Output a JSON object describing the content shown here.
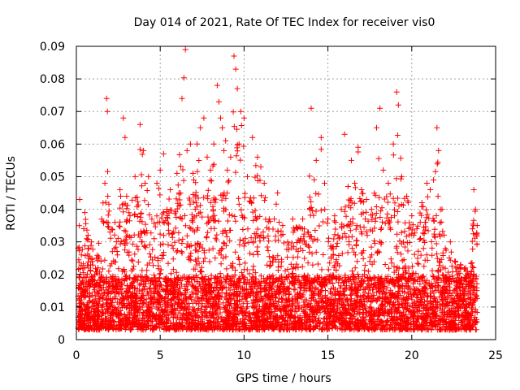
{
  "chart_data": {
    "type": "scatter",
    "title": "Day 014 of 2021, Rate Of TEC Index for receiver vis0",
    "xlabel": "GPS time / hours",
    "ylabel": "ROTI / TECUs",
    "xlim": [
      0,
      25
    ],
    "ylim": [
      0,
      0.09
    ],
    "x_ticks": [
      "0",
      "5",
      "10",
      "15",
      "20",
      "25"
    ],
    "y_ticks": [
      "0",
      "0.01",
      "0.02",
      "0.03",
      "0.04",
      "0.05",
      "0.06",
      "0.07",
      "0.08",
      "0.09"
    ],
    "grid": true,
    "marker": "+",
    "series_color": "#ff0000",
    "series": [
      {
        "name": "vis0",
        "x": [
          0.1,
          0.2,
          0.3,
          0.5,
          0.7,
          0.9,
          1.2,
          1.5,
          1.7,
          1.8,
          1.85,
          2.0,
          2.3,
          2.6,
          2.8,
          2.9,
          3.0,
          3.2,
          3.5,
          3.8,
          4.0,
          4.1,
          4.3,
          4.5,
          4.8,
          5.0,
          5.2,
          5.4,
          5.6,
          5.8,
          6.0,
          6.3,
          6.5,
          6.6,
          6.8,
          7.0,
          7.2,
          7.4,
          7.6,
          7.8,
          8.0,
          8.2,
          8.4,
          8.5,
          8.6,
          8.7,
          8.8,
          8.9,
          9.0,
          9.2,
          9.4,
          9.5,
          9.6,
          9.7,
          9.8,
          10.0,
          10.2,
          10.5,
          10.8,
          11.0,
          11.2,
          11.5,
          11.8,
          12.0,
          12.3,
          12.6,
          12.9,
          13.2,
          13.5,
          13.8,
          14.0,
          14.3,
          14.6,
          14.8,
          15.0,
          15.2,
          15.4,
          15.6,
          15.8,
          16.0,
          16.2,
          16.4,
          16.6,
          16.8,
          17.0,
          17.3,
          17.6,
          17.9,
          18.1,
          18.3,
          18.6,
          18.9,
          19.1,
          19.2,
          19.4,
          19.7,
          20.0,
          20.3,
          20.6,
          20.9,
          21.1,
          21.3,
          21.5,
          21.6,
          21.8,
          22.0,
          22.3,
          22.6,
          22.9,
          23.2,
          23.5,
          23.7,
          23.8,
          23.9
        ],
        "y": [
          0.028,
          0.043,
          0.026,
          0.039,
          0.032,
          0.03,
          0.025,
          0.037,
          0.048,
          0.074,
          0.07,
          0.033,
          0.036,
          0.046,
          0.068,
          0.062,
          0.044,
          0.038,
          0.05,
          0.066,
          0.058,
          0.048,
          0.05,
          0.037,
          0.048,
          0.052,
          0.057,
          0.04,
          0.046,
          0.033,
          0.051,
          0.074,
          0.089,
          0.058,
          0.06,
          0.049,
          0.06,
          0.065,
          0.068,
          0.056,
          0.052,
          0.06,
          0.078,
          0.073,
          0.068,
          0.065,
          0.058,
          0.061,
          0.052,
          0.056,
          0.087,
          0.083,
          0.077,
          0.06,
          0.07,
          0.068,
          0.05,
          0.062,
          0.056,
          0.053,
          0.048,
          0.037,
          0.037,
          0.045,
          0.035,
          0.03,
          0.037,
          0.034,
          0.037,
          0.033,
          0.071,
          0.055,
          0.062,
          0.048,
          0.037,
          0.028,
          0.038,
          0.032,
          0.04,
          0.063,
          0.047,
          0.055,
          0.048,
          0.059,
          0.046,
          0.043,
          0.04,
          0.065,
          0.071,
          0.052,
          0.048,
          0.06,
          0.076,
          0.072,
          0.05,
          0.044,
          0.038,
          0.034,
          0.042,
          0.048,
          0.046,
          0.049,
          0.065,
          0.058,
          0.04,
          0.028,
          0.03,
          0.024,
          0.023,
          0.022,
          0.02,
          0.046,
          0.04,
          0.035
        ],
        "baseline_band": [
          0.003,
          0.025
        ]
      }
    ]
  }
}
